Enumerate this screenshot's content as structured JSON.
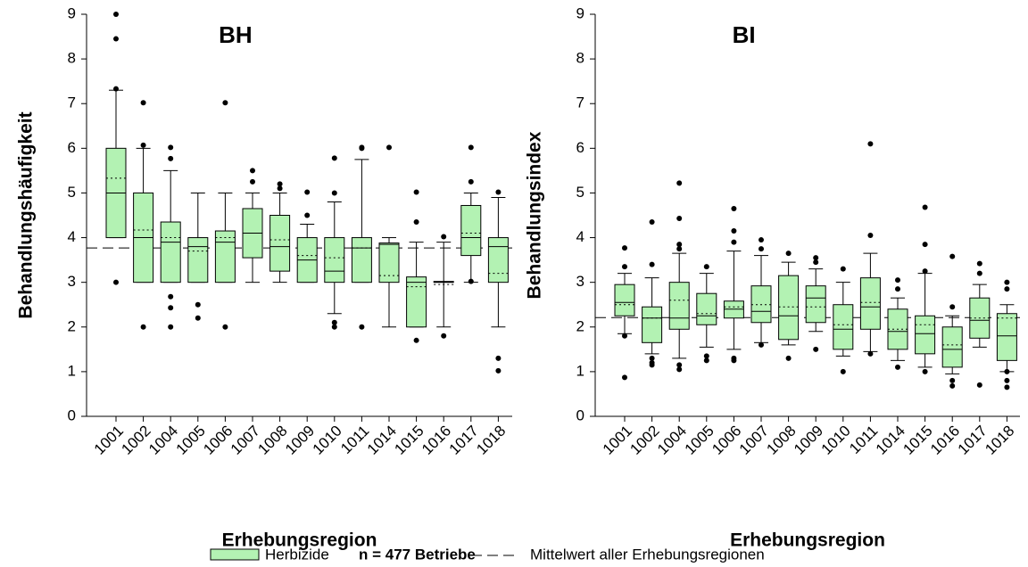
{
  "chart_data": [
    {
      "type": "box",
      "title": "BH",
      "ylabel": "Behandlungshäufigkeit",
      "xlabel": "Erhebungsregion",
      "color": "#b3f2b3",
      "ylim": [
        0,
        9
      ],
      "yticks": [
        0,
        1,
        2,
        3,
        4,
        5,
        6,
        7,
        8,
        9
      ],
      "reference_line": 3.77,
      "categories": [
        "1001",
        "1002",
        "1004",
        "1005",
        "1006",
        "1007",
        "1008",
        "1009",
        "1010",
        "1011",
        "1014",
        "1015",
        "1016",
        "1017",
        "1018"
      ],
      "boxes": [
        {
          "whislo": 4,
          "q1": 4,
          "med": 5,
          "q3": 6,
          "whishi": 7.3,
          "mean": 5.33,
          "fliers": [
            3,
            7.33,
            8.45,
            9
          ]
        },
        {
          "whislo": 3,
          "q1": 3,
          "med": 4,
          "q3": 5,
          "whishi": 6,
          "mean": 4.17,
          "fliers": [
            2,
            6.07,
            7.02
          ]
        },
        {
          "whislo": 3,
          "q1": 3,
          "med": 3.9,
          "q3": 4.35,
          "whishi": 5.5,
          "mean": 4.0,
          "fliers": [
            2,
            2.43,
            2.68,
            5.77,
            6.02
          ]
        },
        {
          "whislo": 3,
          "q1": 3,
          "med": 3.8,
          "q3": 4,
          "whishi": 5,
          "mean": 3.7,
          "fliers": [
            2.2,
            2.5
          ]
        },
        {
          "whislo": 3,
          "q1": 3,
          "med": 3.9,
          "q3": 4.15,
          "whishi": 5,
          "mean": 4.0,
          "fliers": [
            2,
            7.02
          ]
        },
        {
          "whislo": 3,
          "q1": 3.55,
          "med": 4.1,
          "q3": 4.65,
          "whishi": 5,
          "mean": 4.1,
          "fliers": [
            5.25,
            5.5
          ]
        },
        {
          "whislo": 3,
          "q1": 3.25,
          "med": 3.8,
          "q3": 4.5,
          "whishi": 5,
          "mean": 3.95,
          "fliers": [
            5.1,
            5.2
          ]
        },
        {
          "whislo": 3,
          "q1": 3,
          "med": 3.5,
          "q3": 4,
          "whishi": 4.3,
          "mean": 3.6,
          "fliers": [
            4.5,
            5.02
          ]
        },
        {
          "whislo": 2.3,
          "q1": 3,
          "med": 3.25,
          "q3": 4,
          "whishi": 4.8,
          "mean": 3.55,
          "fliers": [
            2,
            2.1,
            5,
            5.78
          ]
        },
        {
          "whislo": 3,
          "q1": 3,
          "med": 3.77,
          "q3": 4,
          "whishi": 5.75,
          "mean": 3.77,
          "fliers": [
            2,
            6,
            6.02
          ]
        },
        {
          "whislo": 2,
          "q1": 3,
          "med": 3.85,
          "q3": 3.88,
          "whishi": 4,
          "mean": 3.15,
          "fliers": [
            6.02
          ]
        },
        {
          "whislo": 2,
          "q1": 2,
          "med": 3,
          "q3": 3.12,
          "whishi": 3.9,
          "mean": 2.9,
          "fliers": [
            1.7,
            4.35,
            5.02
          ]
        },
        {
          "whislo": 2,
          "q1": 3,
          "med": 3,
          "q3": 3.02,
          "whishi": 3.9,
          "mean": 2.95,
          "fliers": [
            1.8,
            4.02
          ]
        },
        {
          "whislo": 3,
          "q1": 3.6,
          "med": 4,
          "q3": 4.72,
          "whishi": 5,
          "mean": 4.1,
          "fliers": [
            3.02,
            5.25,
            6.02
          ]
        },
        {
          "whislo": 2,
          "q1": 3,
          "med": 3.8,
          "q3": 4,
          "whishi": 4.9,
          "mean": 3.2,
          "fliers": [
            1.02,
            1.3,
            5.02
          ]
        }
      ]
    },
    {
      "type": "box",
      "title": "BI",
      "ylabel": "Behandlungsindex",
      "xlabel": "Erhebungsregion",
      "color": "#b3f2b3",
      "ylim": [
        0,
        9
      ],
      "yticks": [
        0,
        1,
        2,
        3,
        4,
        5,
        6,
        7,
        8,
        9
      ],
      "reference_line": 2.21,
      "categories": [
        "1001",
        "1002",
        "1004",
        "1005",
        "1006",
        "1007",
        "1008",
        "1009",
        "1010",
        "1011",
        "1014",
        "1015",
        "1016",
        "1017",
        "1018"
      ],
      "boxes": [
        {
          "whislo": 1.85,
          "q1": 2.25,
          "med": 2.55,
          "q3": 2.95,
          "whishi": 3.2,
          "mean": 2.5,
          "fliers": [
            0.87,
            1.8,
            3.35,
            3.77
          ]
        },
        {
          "whislo": 1.4,
          "q1": 1.65,
          "med": 2.2,
          "q3": 2.45,
          "whishi": 3.1,
          "mean": 2.2,
          "fliers": [
            1.15,
            1.2,
            1.3,
            3.4,
            4.35
          ]
        },
        {
          "whislo": 1.3,
          "q1": 1.95,
          "med": 2.2,
          "q3": 3.0,
          "whishi": 3.65,
          "mean": 2.6,
          "fliers": [
            1.05,
            1.15,
            3.75,
            3.85,
            4.43,
            5.22
          ]
        },
        {
          "whislo": 1.55,
          "q1": 2.05,
          "med": 2.25,
          "q3": 2.75,
          "whishi": 3.2,
          "mean": 2.3,
          "fliers": [
            1.25,
            1.35,
            3.35
          ]
        },
        {
          "whislo": 1.5,
          "q1": 2.2,
          "med": 2.4,
          "q3": 2.58,
          "whishi": 3.7,
          "mean": 2.45,
          "fliers": [
            1.25,
            1.3,
            3.9,
            4.15,
            4.65
          ]
        },
        {
          "whislo": 1.65,
          "q1": 2.1,
          "med": 2.35,
          "q3": 2.92,
          "whishi": 3.6,
          "mean": 2.5,
          "fliers": [
            1.6,
            3.75,
            3.95
          ]
        },
        {
          "whislo": 1.6,
          "q1": 1.72,
          "med": 2.25,
          "q3": 3.15,
          "whishi": 3.45,
          "mean": 2.45,
          "fliers": [
            1.3,
            3.65
          ]
        },
        {
          "whislo": 1.9,
          "q1": 2.1,
          "med": 2.65,
          "q3": 2.92,
          "whishi": 3.3,
          "mean": 2.45,
          "fliers": [
            1.5,
            3.45,
            3.55
          ]
        },
        {
          "whislo": 1.35,
          "q1": 1.5,
          "med": 1.95,
          "q3": 2.5,
          "whishi": 3.0,
          "mean": 2.05,
          "fliers": [
            1.0,
            3.3
          ]
        },
        {
          "whislo": 1.45,
          "q1": 1.95,
          "med": 2.45,
          "q3": 3.1,
          "whishi": 3.65,
          "mean": 2.55,
          "fliers": [
            1.4,
            4.05,
            6.1
          ]
        },
        {
          "whislo": 1.25,
          "q1": 1.5,
          "med": 1.9,
          "q3": 2.4,
          "whishi": 2.65,
          "mean": 1.95,
          "fliers": [
            1.1,
            2.85,
            3.05
          ]
        },
        {
          "whislo": 1.1,
          "q1": 1.4,
          "med": 1.85,
          "q3": 2.25,
          "whishi": 3.2,
          "mean": 2.05,
          "fliers": [
            1.0,
            3.25,
            3.85,
            4.68
          ]
        },
        {
          "whislo": 0.95,
          "q1": 1.1,
          "med": 1.5,
          "q3": 2.0,
          "whishi": 2.25,
          "mean": 1.6,
          "fliers": [
            0.68,
            0.8,
            2.45,
            3.58
          ]
        },
        {
          "whislo": 1.55,
          "q1": 1.75,
          "med": 2.15,
          "q3": 2.65,
          "whishi": 2.95,
          "mean": 2.2,
          "fliers": [
            0.7,
            3.2,
            3.42
          ]
        },
        {
          "whislo": 1.0,
          "q1": 1.25,
          "med": 1.8,
          "q3": 2.3,
          "whishi": 2.5,
          "mean": 2.2,
          "fliers": [
            0.65,
            0.8,
            1.0,
            2.85,
            3.0
          ]
        }
      ]
    }
  ],
  "legend": {
    "series_label": "Herbizide",
    "note": "n = 477 Betriebe",
    "reference_label": "Mittelwert aller Erhebungsregionen"
  }
}
